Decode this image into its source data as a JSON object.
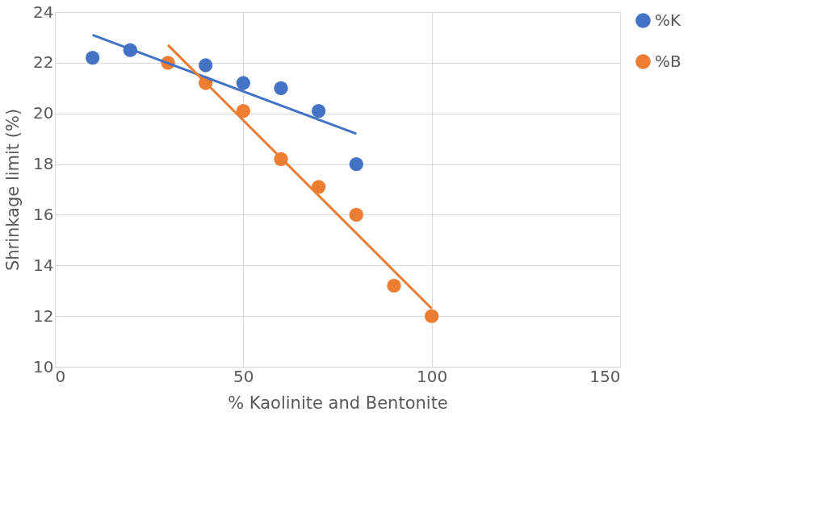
{
  "chart_data": {
    "type": "scatter",
    "xlabel": "% Kaolinite and Bentonite",
    "ylabel": "Shrinkage limit (%)",
    "xlim": [
      0,
      150
    ],
    "xticks": [
      0,
      50,
      100,
      150
    ],
    "ylim": [
      10,
      24
    ],
    "yticks": [
      10,
      12,
      14,
      16,
      18,
      20,
      22,
      24
    ],
    "grid": true,
    "legend": "right",
    "marker": "circle",
    "series": [
      {
        "name": "%K",
        "color": "#4472c4",
        "x": [
          10,
          20,
          40,
          50,
          60,
          70,
          80
        ],
        "values": [
          22.2,
          22.5,
          21.9,
          21.2,
          21.0,
          20.1,
          18.0
        ]
      },
      {
        "name": "%B",
        "color": "#ed7d31",
        "x": [
          30,
          40,
          50,
          60,
          70,
          80,
          90,
          100
        ],
        "values": [
          22.0,
          21.2,
          20.1,
          18.2,
          17.1,
          16.0,
          13.2,
          12.0
        ]
      },
      {
        "type": "line",
        "marker": "none",
        "color": "#4472c4",
        "x": [
          10,
          80
        ],
        "values": [
          23.1,
          19.2
        ]
      },
      {
        "type": "line",
        "marker": "none",
        "color": "#ed7d31",
        "x": [
          30,
          100
        ],
        "values": [
          22.7,
          12.3
        ]
      }
    ]
  }
}
